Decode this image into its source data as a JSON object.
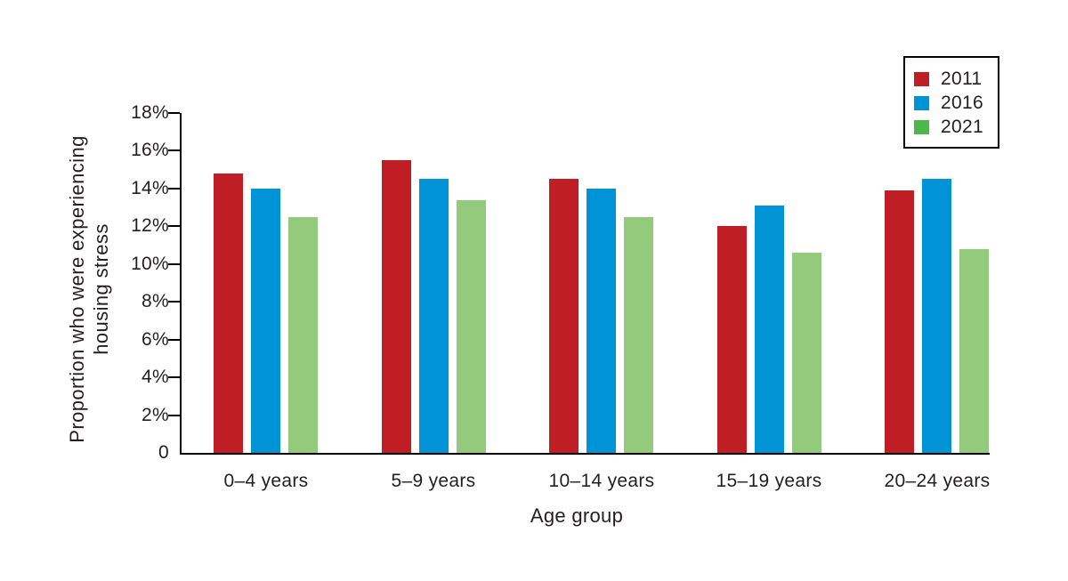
{
  "chart_data": {
    "type": "bar",
    "title": "",
    "xlabel": "Age group",
    "ylabel_lines": [
      "Proportion who were experiencing",
      "housing stress"
    ],
    "categories": [
      "0–4 years",
      "5–9 years",
      "10–14 years",
      "15–19 years",
      "20–24 years"
    ],
    "series": [
      {
        "name": "2011",
        "color": "#bf1e24",
        "legend_color": "#bf1e24",
        "values": [
          14.8,
          15.5,
          14.5,
          12.0,
          13.9
        ]
      },
      {
        "name": "2016",
        "color": "#0094d7",
        "legend_color": "#0094d7",
        "values": [
          14.0,
          14.5,
          14.0,
          13.1,
          14.5
        ]
      },
      {
        "name": "2021",
        "color": "#93ca7b",
        "legend_color": "#4cb849",
        "values": [
          12.5,
          13.4,
          12.5,
          10.6,
          10.8
        ]
      }
    ],
    "ylim": [
      0,
      18
    ],
    "ytick_step": 2,
    "ytick_labels": [
      "0",
      "2%",
      "4%",
      "6%",
      "8%",
      "10%",
      "12%",
      "14%",
      "16%",
      "18%"
    ],
    "legend_position": "top-right",
    "grid": false,
    "axis_color": "#000000",
    "text_color": "#231f20",
    "background": "#ffffff"
  }
}
